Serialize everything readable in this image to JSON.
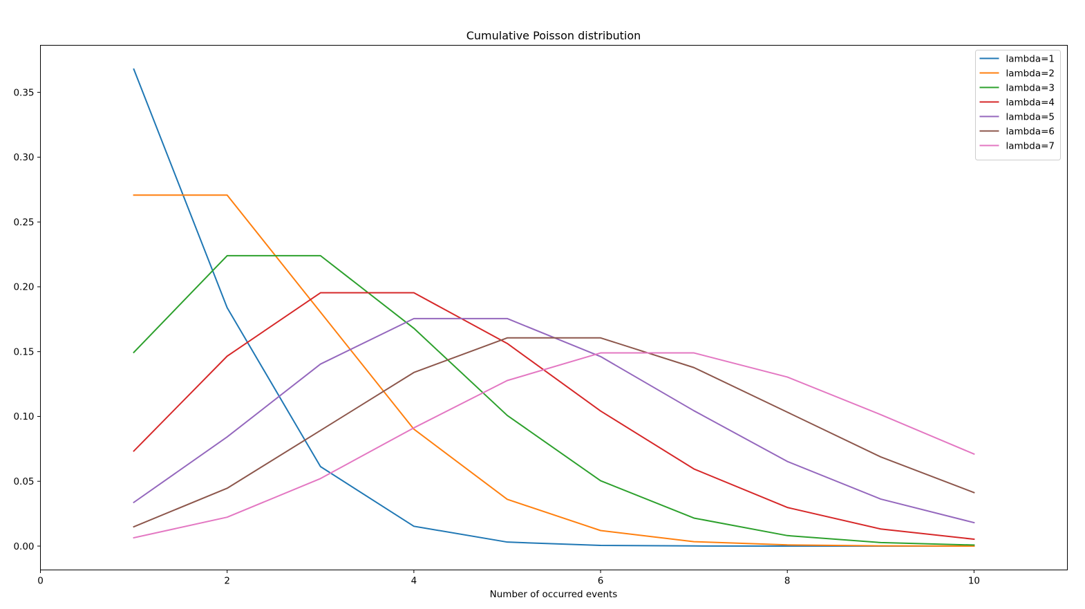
{
  "chart_data": {
    "type": "line",
    "title": "Cumulative Poisson distribution",
    "xlabel": "Number of occurred events",
    "ylabel": "",
    "xlim": [
      0,
      11
    ],
    "ylim": [
      -0.0184,
      0.3863
    ],
    "xticks": [
      0,
      2,
      4,
      6,
      8,
      10
    ],
    "yticks": [
      0.0,
      0.05,
      0.1,
      0.15,
      0.2,
      0.25,
      0.3,
      0.35
    ],
    "ytick_labels": [
      "0.00",
      "0.05",
      "0.10",
      "0.15",
      "0.20",
      "0.25",
      "0.30",
      "0.35"
    ],
    "grid": false,
    "legend_position": "top-right",
    "x": [
      1,
      2,
      3,
      4,
      5,
      6,
      7,
      8,
      9,
      10
    ],
    "series": [
      {
        "name": "lambda=1",
        "color": "#1f77b4",
        "values": [
          0.3679,
          0.1839,
          0.0613,
          0.0153,
          0.0031,
          0.0005,
          0.0001,
          0.0,
          0.0,
          0.0
        ]
      },
      {
        "name": "lambda=2",
        "color": "#ff7f0e",
        "values": [
          0.2707,
          0.2707,
          0.1804,
          0.0902,
          0.0361,
          0.012,
          0.0034,
          0.0009,
          0.0002,
          0.0
        ]
      },
      {
        "name": "lambda=3",
        "color": "#2ca02c",
        "values": [
          0.1494,
          0.224,
          0.224,
          0.168,
          0.1008,
          0.0504,
          0.0216,
          0.0081,
          0.0027,
          0.0008
        ]
      },
      {
        "name": "lambda=4",
        "color": "#d62728",
        "values": [
          0.0733,
          0.1465,
          0.1954,
          0.1954,
          0.1563,
          0.1042,
          0.0595,
          0.0298,
          0.0132,
          0.0053
        ]
      },
      {
        "name": "lambda=5",
        "color": "#9467bd",
        "values": [
          0.0337,
          0.0842,
          0.1404,
          0.1755,
          0.1755,
          0.1462,
          0.1044,
          0.0653,
          0.0363,
          0.0181
        ]
      },
      {
        "name": "lambda=6",
        "color": "#8c564b",
        "values": [
          0.0149,
          0.0446,
          0.0892,
          0.1339,
          0.1606,
          0.1606,
          0.1377,
          0.1033,
          0.0688,
          0.0413
        ]
      },
      {
        "name": "lambda=7",
        "color": "#e377c2",
        "values": [
          0.0064,
          0.0223,
          0.0521,
          0.0912,
          0.1277,
          0.149,
          0.149,
          0.1304,
          0.1014,
          0.071
        ]
      }
    ]
  }
}
